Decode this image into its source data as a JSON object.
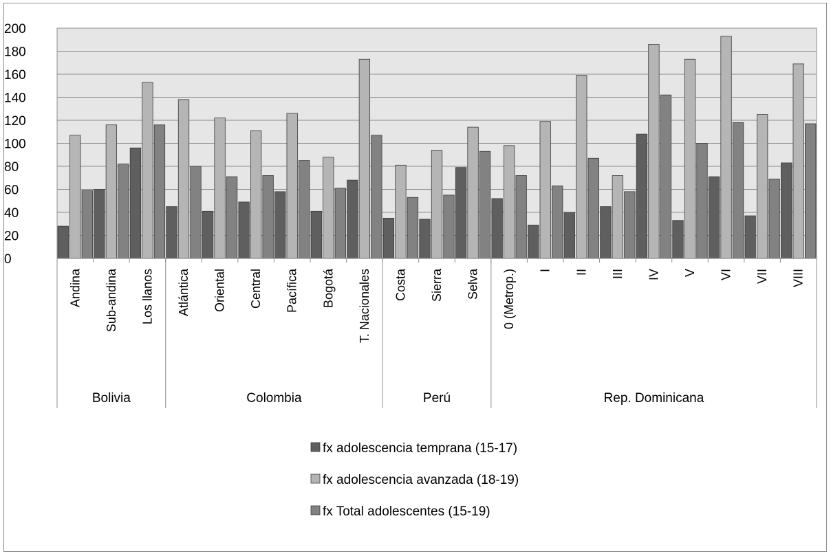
{
  "chart_data": {
    "type": "bar",
    "ylim": [
      0,
      200
    ],
    "yticks": [
      0,
      20,
      40,
      60,
      80,
      100,
      120,
      140,
      160,
      180,
      200
    ],
    "grid": true,
    "legend_position": "bottom",
    "groups": [
      {
        "label": "Bolivia",
        "categories": [
          "Andina",
          "Sub-andina",
          "Los llanos"
        ]
      },
      {
        "label": "Colombia",
        "categories": [
          "Atlántica",
          "Oriental",
          "Central",
          "Pacífica",
          "Bogotá",
          "T. Nacionales"
        ]
      },
      {
        "label": "Perú",
        "categories": [
          "Costa",
          "Sierra",
          "Selva"
        ]
      },
      {
        "label": "Rep. Dominicana",
        "categories": [
          "0 (Metrop.)",
          "I",
          "II",
          "III",
          "IV",
          "V",
          "VI",
          "VII",
          "VIII"
        ]
      }
    ],
    "categories": [
      "Andina",
      "Sub-andina",
      "Los llanos",
      "Atlántica",
      "Oriental",
      "Central",
      "Pacífica",
      "Bogotá",
      "T. Nacionales",
      "Costa",
      "Sierra",
      "Selva",
      "0 (Metrop.)",
      "I",
      "II",
      "III",
      "IV",
      "V",
      "VI",
      "VII",
      "VIII"
    ],
    "series": [
      {
        "name": "fx  adolescencia temprana (15-17)",
        "color": "#5f5f5f",
        "values": [
          28,
          60,
          96,
          45,
          41,
          49,
          58,
          41,
          68,
          35,
          34,
          79,
          52,
          29,
          40,
          45,
          108,
          33,
          71,
          37,
          83
        ]
      },
      {
        "name": "fx  adolescencia avanzada (18-19)",
        "color": "#b5b5b5",
        "values": [
          107,
          116,
          153,
          138,
          122,
          111,
          126,
          88,
          173,
          81,
          94,
          114,
          98,
          119,
          159,
          72,
          186,
          173,
          193,
          125,
          169
        ]
      },
      {
        "name": "fx  Total adolescentes (15-19)",
        "color": "#828282",
        "values": [
          59,
          82,
          116,
          80,
          71,
          72,
          85,
          61,
          107,
          53,
          55,
          93,
          72,
          63,
          87,
          58,
          142,
          100,
          118,
          69,
          117
        ]
      }
    ]
  },
  "colors": {
    "plot_background": "#e6e6e6",
    "gridline": "#8c8c8c",
    "axis": "#8c8c8c"
  }
}
